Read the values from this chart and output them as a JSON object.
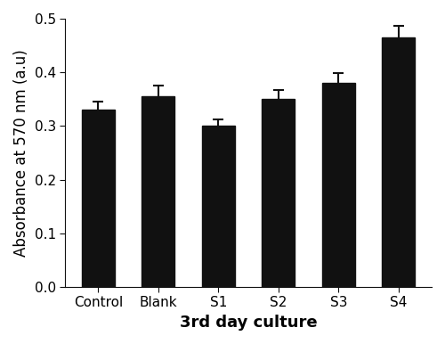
{
  "categories": [
    "Control",
    "Blank",
    "S1",
    "S2",
    "S3",
    "S4"
  ],
  "values": [
    0.33,
    0.356,
    0.3,
    0.35,
    0.38,
    0.465
  ],
  "errors": [
    0.015,
    0.02,
    0.013,
    0.017,
    0.018,
    0.022
  ],
  "bar_color": "#111111",
  "bar_edgecolor": "#111111",
  "bar_width": 0.55,
  "xlabel": "3rd day culture",
  "ylabel": "Absorbance at 570 nm (a.u)",
  "ylim": [
    0.0,
    0.5
  ],
  "yticks": [
    0.0,
    0.1,
    0.2,
    0.3,
    0.4,
    0.5
  ],
  "xlabel_fontsize": 13,
  "ylabel_fontsize": 12,
  "tick_fontsize": 11,
  "xlabel_fontweight": "bold",
  "background_color": "#ffffff",
  "capsize": 4,
  "elinewidth": 1.5,
  "ecapthick": 1.5,
  "ecolor": "#111111"
}
